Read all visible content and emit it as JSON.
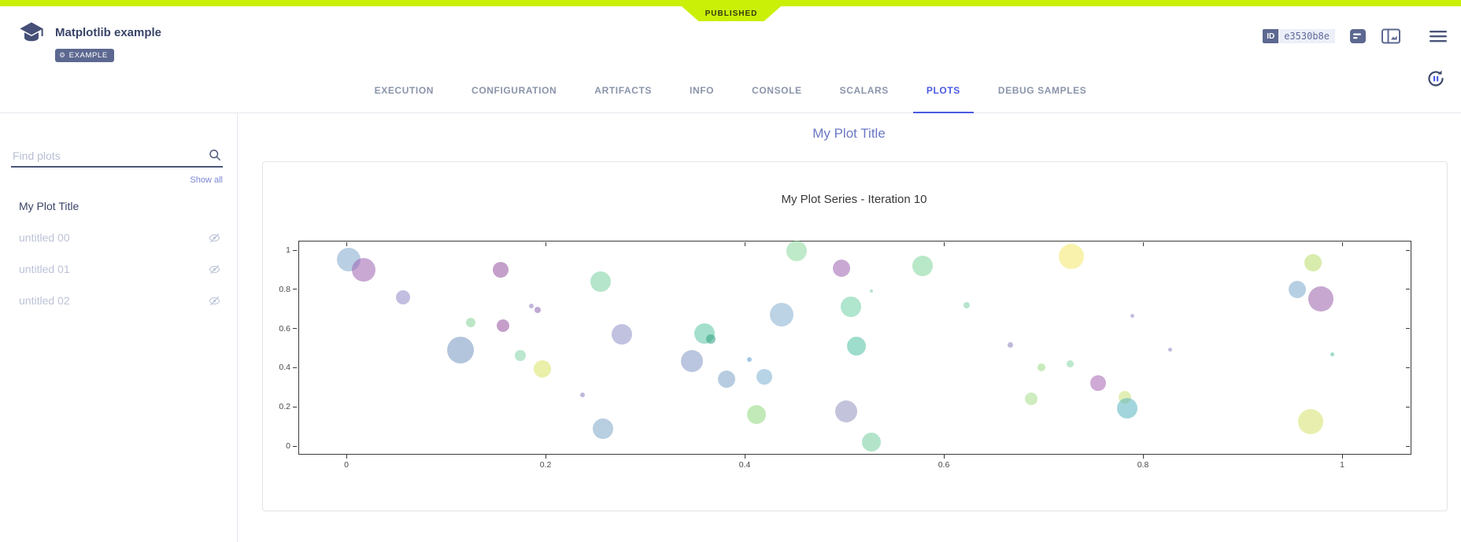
{
  "colors": {
    "accent": "#c9f006",
    "active_tab": "#4b5ae4",
    "badge_bg": "#5c6890"
  },
  "status_ribbon": "PUBLISHED",
  "header": {
    "title": "Matplotlib example",
    "tag": "EXAMPLE",
    "id_label": "ID",
    "id_value": "e3530b8e",
    "icons": [
      "task-icon",
      "description-icon",
      "board-icon",
      "menu-icon"
    ]
  },
  "tabs": [
    {
      "label": "EXECUTION",
      "active": false
    },
    {
      "label": "CONFIGURATION",
      "active": false
    },
    {
      "label": "ARTIFACTS",
      "active": false
    },
    {
      "label": "INFO",
      "active": false
    },
    {
      "label": "CONSOLE",
      "active": false
    },
    {
      "label": "SCALARS",
      "active": false
    },
    {
      "label": "PLOTS",
      "active": true
    },
    {
      "label": "DEBUG SAMPLES",
      "active": false
    }
  ],
  "sidebar": {
    "search_placeholder": "Find plots",
    "show_all": "Show all",
    "items": [
      {
        "label": "My Plot Title",
        "active": true,
        "hidden": false
      },
      {
        "label": "untitled 00",
        "active": false,
        "hidden": true
      },
      {
        "label": "untitled 01",
        "active": false,
        "hidden": true
      },
      {
        "label": "untitled 02",
        "active": false,
        "hidden": true
      }
    ]
  },
  "main": {
    "heading": "My Plot Title"
  },
  "chart_data": {
    "type": "scatter",
    "title": "My Plot Series - Iteration 10",
    "xlabel": "",
    "ylabel": "",
    "xlim": [
      -0.05,
      1.07
    ],
    "ylim": [
      -0.04,
      1.05
    ],
    "x_ticks": [
      0,
      0.2,
      0.4,
      0.6,
      0.8,
      1
    ],
    "y_ticks": [
      0,
      0.2,
      0.4,
      0.6,
      0.8,
      1
    ],
    "grid": false,
    "legend": false,
    "points": [
      {
        "x": 0.002,
        "y": 0.95,
        "r": 15,
        "color": "#7fa8cc"
      },
      {
        "x": 0.017,
        "y": 0.9,
        "r": 15,
        "color": "#9c63b0"
      },
      {
        "x": 0.057,
        "y": 0.76,
        "r": 9,
        "color": "#9088c8"
      },
      {
        "x": 0.155,
        "y": 0.9,
        "r": 10,
        "color": "#94519f"
      },
      {
        "x": 0.186,
        "y": 0.715,
        "r": 3,
        "color": "#8d7fc0"
      },
      {
        "x": 0.192,
        "y": 0.693,
        "r": 4,
        "color": "#8d62ae"
      },
      {
        "x": 0.255,
        "y": 0.84,
        "r": 13,
        "color": "#79cfa0"
      },
      {
        "x": 0.125,
        "y": 0.63,
        "r": 6,
        "color": "#85d398"
      },
      {
        "x": 0.157,
        "y": 0.615,
        "r": 8,
        "color": "#96519e"
      },
      {
        "x": 0.115,
        "y": 0.49,
        "r": 17,
        "color": "#7296bf"
      },
      {
        "x": 0.175,
        "y": 0.46,
        "r": 7,
        "color": "#82d4a4"
      },
      {
        "x": 0.197,
        "y": 0.392,
        "r": 11,
        "color": "#d8e163"
      },
      {
        "x": 0.277,
        "y": 0.57,
        "r": 13,
        "color": "#8e8fc6"
      },
      {
        "x": 0.237,
        "y": 0.262,
        "r": 3,
        "color": "#8d7fc0"
      },
      {
        "x": 0.258,
        "y": 0.09,
        "r": 13,
        "color": "#7ea6c9"
      },
      {
        "x": 0.36,
        "y": 0.575,
        "r": 13,
        "color": "#59c4a4"
      },
      {
        "x": 0.366,
        "y": 0.548,
        "r": 6,
        "color": "#2fa080"
      },
      {
        "x": 0.347,
        "y": 0.432,
        "r": 14,
        "color": "#8195c4"
      },
      {
        "x": 0.382,
        "y": 0.34,
        "r": 11,
        "color": "#7ba3c8"
      },
      {
        "x": 0.405,
        "y": 0.44,
        "r": 3,
        "color": "#5b9bd4"
      },
      {
        "x": 0.42,
        "y": 0.352,
        "r": 10,
        "color": "#7bb0d2"
      },
      {
        "x": 0.412,
        "y": 0.16,
        "r": 12,
        "color": "#8fd87e"
      },
      {
        "x": 0.437,
        "y": 0.67,
        "r": 15,
        "color": "#85aed0"
      },
      {
        "x": 0.452,
        "y": 0.995,
        "r": 13,
        "color": "#8ad89c"
      },
      {
        "x": 0.497,
        "y": 0.908,
        "r": 11,
        "color": "#9c63b0"
      },
      {
        "x": 0.507,
        "y": 0.712,
        "r": 13,
        "color": "#6fcfa6"
      },
      {
        "x": 0.512,
        "y": 0.51,
        "r": 12,
        "color": "#4fc0a0"
      },
      {
        "x": 0.502,
        "y": 0.178,
        "r": 14,
        "color": "#9294be"
      },
      {
        "x": 0.527,
        "y": 0.02,
        "r": 12,
        "color": "#74ce9e"
      },
      {
        "x": 0.579,
        "y": 0.92,
        "r": 13,
        "color": "#7ed59a"
      },
      {
        "x": 0.527,
        "y": 0.791,
        "r": 2,
        "color": "#79cfa0"
      },
      {
        "x": 0.623,
        "y": 0.718,
        "r": 4,
        "color": "#79cfa0"
      },
      {
        "x": 0.667,
        "y": 0.518,
        "r": 3.5,
        "color": "#8d7fc0"
      },
      {
        "x": 0.728,
        "y": 0.968,
        "r": 16,
        "color": "#f2e868"
      },
      {
        "x": 0.698,
        "y": 0.4,
        "r": 5,
        "color": "#99db84"
      },
      {
        "x": 0.727,
        "y": 0.42,
        "r": 4.5,
        "color": "#84d6a0"
      },
      {
        "x": 0.688,
        "y": 0.24,
        "r": 8,
        "color": "#a8dc8a"
      },
      {
        "x": 0.755,
        "y": 0.322,
        "r": 10,
        "color": "#a565b2"
      },
      {
        "x": 0.789,
        "y": 0.665,
        "r": 2.5,
        "color": "#9088c8"
      },
      {
        "x": 0.827,
        "y": 0.49,
        "r": 2.5,
        "color": "#8d7fc0"
      },
      {
        "x": 0.782,
        "y": 0.248,
        "r": 8,
        "color": "#c8e27c"
      },
      {
        "x": 0.784,
        "y": 0.194,
        "r": 13,
        "color": "#55b2c0"
      },
      {
        "x": 0.955,
        "y": 0.798,
        "r": 11,
        "color": "#7ba8cc"
      },
      {
        "x": 0.979,
        "y": 0.752,
        "r": 16,
        "color": "#995fa8"
      },
      {
        "x": 0.971,
        "y": 0.936,
        "r": 11,
        "color": "#b8dc6a"
      },
      {
        "x": 0.99,
        "y": 0.467,
        "r": 2.5,
        "color": "#4fc0a0"
      },
      {
        "x": 0.968,
        "y": 0.125,
        "r": 16,
        "color": "#d6e26c"
      }
    ]
  }
}
